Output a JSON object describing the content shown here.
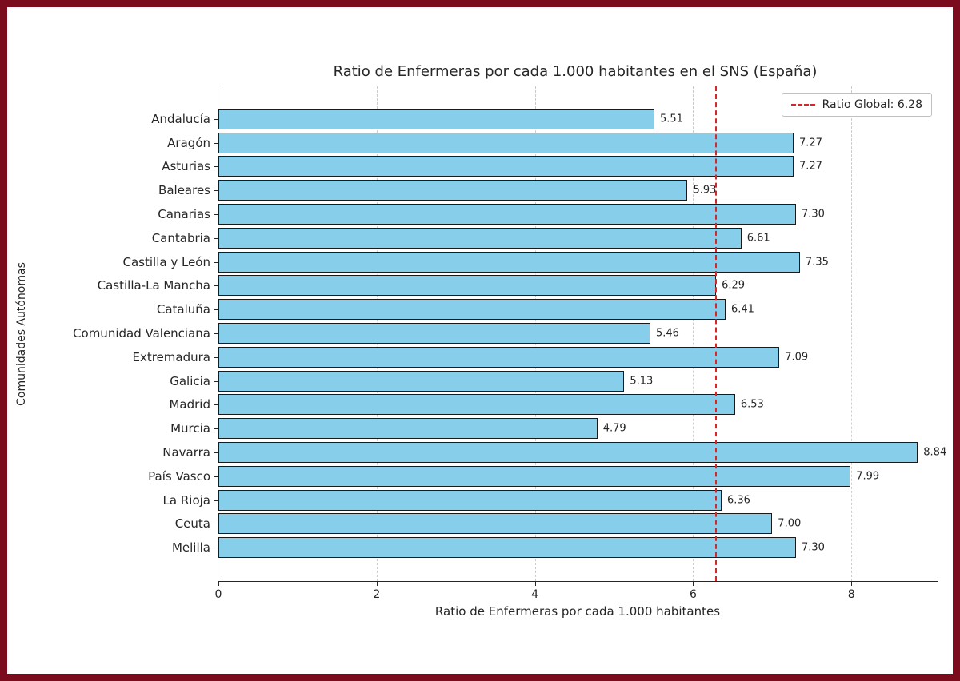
{
  "frame": {
    "border_color": "#7a0c1e",
    "background_color": "#ffffff"
  },
  "chart_data": {
    "type": "bar",
    "orientation": "horizontal",
    "title": "Ratio de Enfermeras por cada 1.000 habitantes en el SNS (España)",
    "xlabel": "Ratio de Enfermeras por cada 1.000 habitantes",
    "ylabel": "Comunidades Autónomas",
    "categories": [
      "Andalucía",
      "Aragón",
      "Asturias",
      "Baleares",
      "Canarias",
      "Cantabria",
      "Castilla y León",
      "Castilla-La Mancha",
      "Cataluña",
      "Comunidad Valenciana",
      "Extremadura",
      "Galicia",
      "Madrid",
      "Murcia",
      "Navarra",
      "País Vasco",
      "La Rioja",
      "Ceuta",
      "Melilla"
    ],
    "values": [
      5.51,
      7.27,
      7.27,
      5.93,
      7.3,
      6.61,
      7.35,
      6.29,
      6.41,
      5.46,
      7.09,
      5.13,
      6.53,
      4.79,
      8.84,
      7.99,
      6.36,
      7.0,
      7.3
    ],
    "value_labels": [
      "5.51",
      "7.27",
      "7.27",
      "5.93",
      "7.30",
      "6.61",
      "7.35",
      "6.29",
      "6.41",
      "5.46",
      "7.09",
      "5.13",
      "6.53",
      "4.79",
      "8.84",
      "7.99",
      "6.36",
      "7.00",
      "7.30"
    ],
    "xlim": [
      0,
      9.1
    ],
    "xticks": [
      0,
      2,
      4,
      6,
      8
    ],
    "grid": true,
    "grid_style": "dashed",
    "grid_color": "#cccccc",
    "bar_color": "#87ceeb",
    "bar_edge_color": "#1a1a1a",
    "reference_line": {
      "value": 6.28,
      "color": "#d62728",
      "style": "dashed",
      "label": "Ratio Global: 6.28"
    },
    "legend": {
      "position": "top-right"
    }
  }
}
